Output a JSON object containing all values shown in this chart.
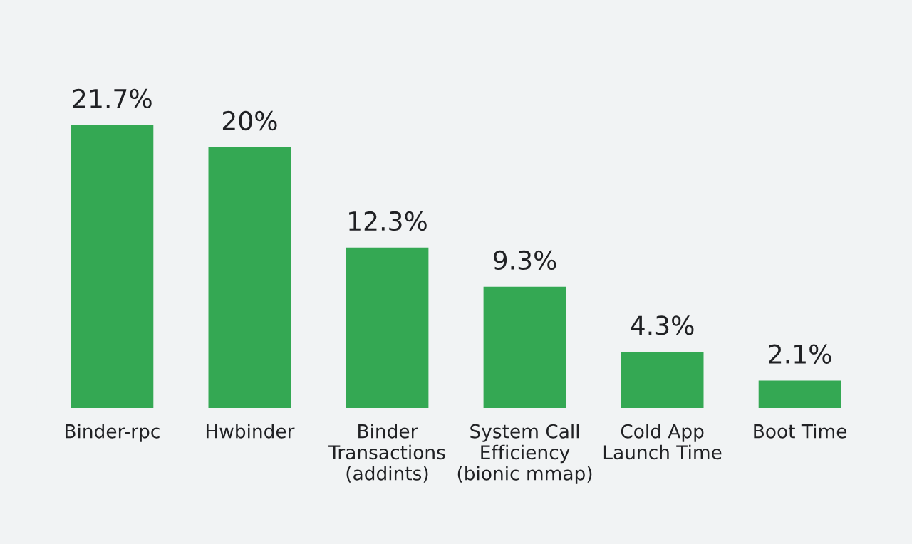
{
  "chart_data": {
    "type": "bar",
    "categories": [
      "Binder-rpc",
      "Hwbinder",
      "Binder\nTransactions\n(addints)",
      "System Call\nEfficiency\n(bionic mmap)",
      "Cold App\nLaunch Time",
      "Boot Time"
    ],
    "values": [
      21.7,
      20,
      12.3,
      9.3,
      4.3,
      2.1
    ],
    "value_labels": [
      "21.7%",
      "20%",
      "12.3%",
      "9.3%",
      "4.3%",
      "2.1%"
    ],
    "color": "#34a853",
    "grid": false
  }
}
